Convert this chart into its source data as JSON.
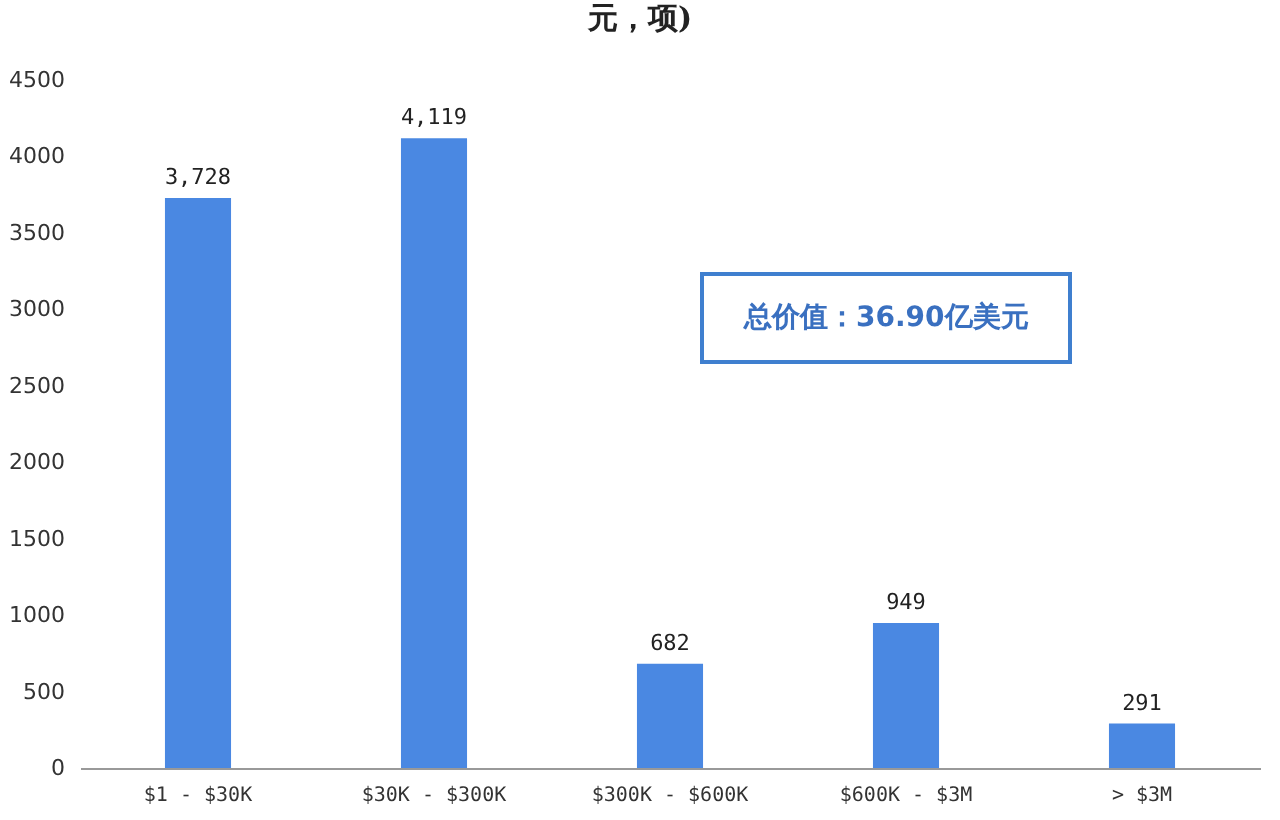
{
  "chart_data": {
    "type": "bar",
    "title": "元，项)",
    "categories": [
      "$1 - $30K",
      "$30K - $300K",
      "$300K - $600K",
      "$600K - $3M",
      "> $3M"
    ],
    "values": [
      3728,
      4119,
      682,
      949,
      291
    ],
    "color": "#4a88e2",
    "value_labels": [
      "3,728",
      "4,119",
      "682",
      "949",
      "291"
    ],
    "ylim": [
      0,
      4500
    ],
    "yticks": [
      0,
      500,
      1000,
      1500,
      2000,
      2500,
      3000,
      3500,
      4000,
      4500
    ],
    "grid": false,
    "annotations": [
      "总价值：36.90亿美元"
    ]
  }
}
